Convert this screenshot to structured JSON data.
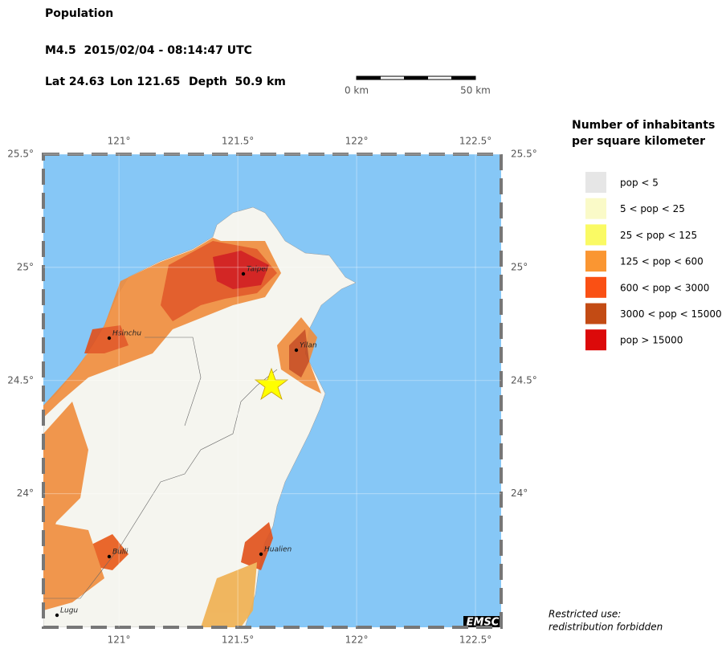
{
  "header": {
    "title": "Population",
    "event": "M4.5  2015/02/04 - 08:14:47 UTC",
    "lat": "Lat 24.63",
    "lon": "Lon 121.65",
    "depth": "Depth  50.9 km"
  },
  "scale_bar": {
    "start": "0 km",
    "end": "50 km"
  },
  "map": {
    "xlim": [
      120.682,
      122.608
    ],
    "ylim": [
      23.41,
      25.5
    ],
    "xticks": [
      {
        "value": 121,
        "label": "121°"
      },
      {
        "value": 121.5,
        "label": "121.5°"
      },
      {
        "value": 122,
        "label": "122°"
      },
      {
        "value": 122.5,
        "label": "122.5°"
      }
    ],
    "yticks": [
      {
        "value": 25.5,
        "label": "25.5°"
      },
      {
        "value": 25,
        "label": "25°"
      },
      {
        "value": 24.5,
        "label": "24.5°"
      },
      {
        "value": 24,
        "label": "24°"
      }
    ],
    "cities": [
      "Taipei",
      "Hsinchu",
      "Yilan",
      "Bulli",
      "Hualien",
      "Lugu"
    ],
    "credit": "EMSC"
  },
  "legend": {
    "title": [
      "Number of inhabitants",
      "per square kilometer"
    ],
    "items": [
      {
        "label": "pop < 5",
        "color": "#e6e6e6"
      },
      {
        "label": "5 < pop < 25",
        "color": "#fafac8"
      },
      {
        "label": "25 < pop < 125",
        "color": "#fafa64"
      },
      {
        "label": "125 < pop < 600",
        "color": "#fa9632"
      },
      {
        "label": "600 < pop < 3000",
        "color": "#fa5014"
      },
      {
        "label": "3000 < pop < 15000",
        "color": "#c34b14"
      },
      {
        "label": "pop > 15000",
        "color": "#dc0a0a"
      }
    ]
  },
  "notice": [
    "Restricted use:",
    "redistribution forbidden"
  ]
}
